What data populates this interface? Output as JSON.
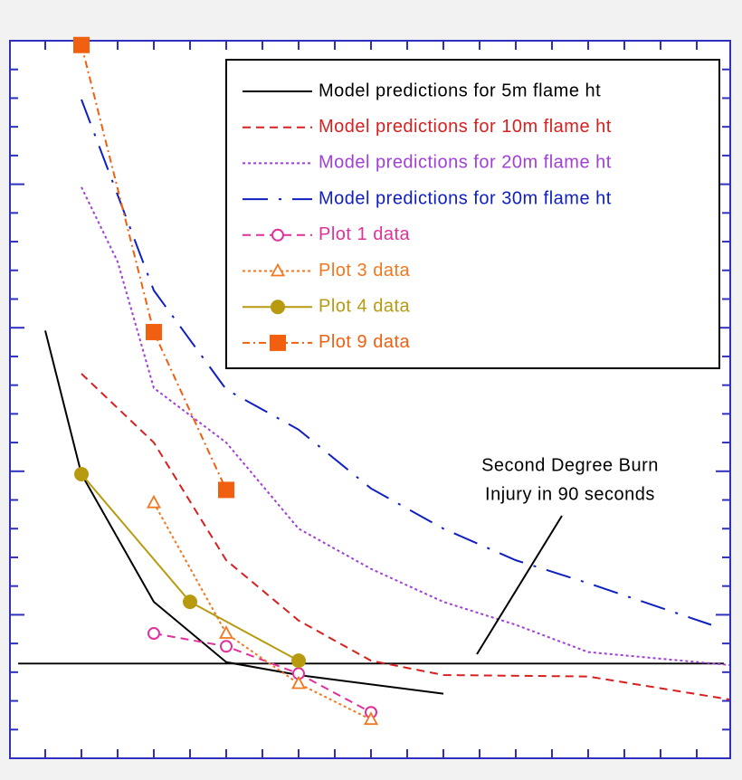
{
  "chart_data": {
    "type": "line",
    "xlim": [
      0,
      20
    ],
    "ylim": [
      0,
      25
    ],
    "xticks": [
      1,
      2,
      3,
      4,
      5,
      6,
      7,
      8,
      9,
      10,
      11,
      12,
      13,
      14,
      15,
      16,
      17,
      18,
      19
    ],
    "yticks": [
      1,
      2,
      3,
      4,
      5,
      6,
      7,
      8,
      9,
      10,
      11,
      12,
      13,
      14,
      15,
      16,
      17,
      18,
      19,
      20,
      21,
      22,
      23,
      24
    ],
    "legend": "upper right",
    "series": [
      {
        "name": "Model predictions for 5m flame ht",
        "color": "#000000",
        "line_style": "solid",
        "marker": "none",
        "x": [
          1,
          2,
          4,
          6,
          8,
          12
        ],
        "values": [
          14.9,
          9.9,
          5.45,
          3.35,
          2.9,
          2.25
        ]
      },
      {
        "name": "Model predictions for 10m flame ht",
        "color": "#d82020",
        "line_style": "dashed",
        "marker": "none",
        "x": [
          2,
          4,
          6,
          8,
          10,
          12,
          16,
          19.9
        ],
        "values": [
          13.4,
          11.0,
          6.9,
          4.8,
          3.4,
          2.9,
          2.85,
          2.05
        ]
      },
      {
        "name": "Model predictions for 20m flame ht",
        "color": "#a040d8",
        "line_style": "dotted",
        "marker": "none",
        "x": [
          2,
          3,
          4,
          6,
          8,
          10,
          12,
          14,
          16,
          19.9
        ],
        "values": [
          19.9,
          17.3,
          12.9,
          11.0,
          8.0,
          6.6,
          5.45,
          4.65,
          3.7,
          3.25
        ]
      },
      {
        "name": "Model predictions for 30m flame ht",
        "color": "#1020c0",
        "line_style": "longdash",
        "marker": "none",
        "x": [
          2,
          4,
          6,
          8,
          10,
          12,
          14,
          16,
          19.4
        ],
        "values": [
          22.95,
          16.3,
          12.85,
          11.45,
          9.4,
          8.0,
          6.9,
          6.1,
          4.65
        ]
      },
      {
        "name": "Plot 1 data",
        "color": "#e0309a",
        "line_style": "dashed",
        "marker": "circle-open",
        "x": [
          4,
          6,
          8,
          10
        ],
        "values": [
          4.35,
          3.9,
          2.95,
          1.6
        ]
      },
      {
        "name": "Plot 3 data",
        "color": "#f07820",
        "line_style": "dotted",
        "marker": "triangle-open",
        "x": [
          4,
          6,
          8,
          10
        ],
        "values": [
          8.9,
          4.35,
          2.6,
          1.35
        ]
      },
      {
        "name": "Plot 4 data",
        "color": "#b89a10",
        "line_style": "solid",
        "marker": "circle",
        "x": [
          2,
          5,
          8
        ],
        "values": [
          9.9,
          5.45,
          3.4
        ]
      },
      {
        "name": "Plot 9 data",
        "color": "#f06010",
        "line_style": "dashdot",
        "marker": "square",
        "x": [
          2,
          4,
          6
        ],
        "values": [
          24.85,
          14.85,
          9.35
        ]
      }
    ],
    "threshold": {
      "value": 3.3,
      "color": "#000000"
    },
    "annotation": [
      "Second Degree Burn",
      "Injury in 90 seconds"
    ]
  }
}
